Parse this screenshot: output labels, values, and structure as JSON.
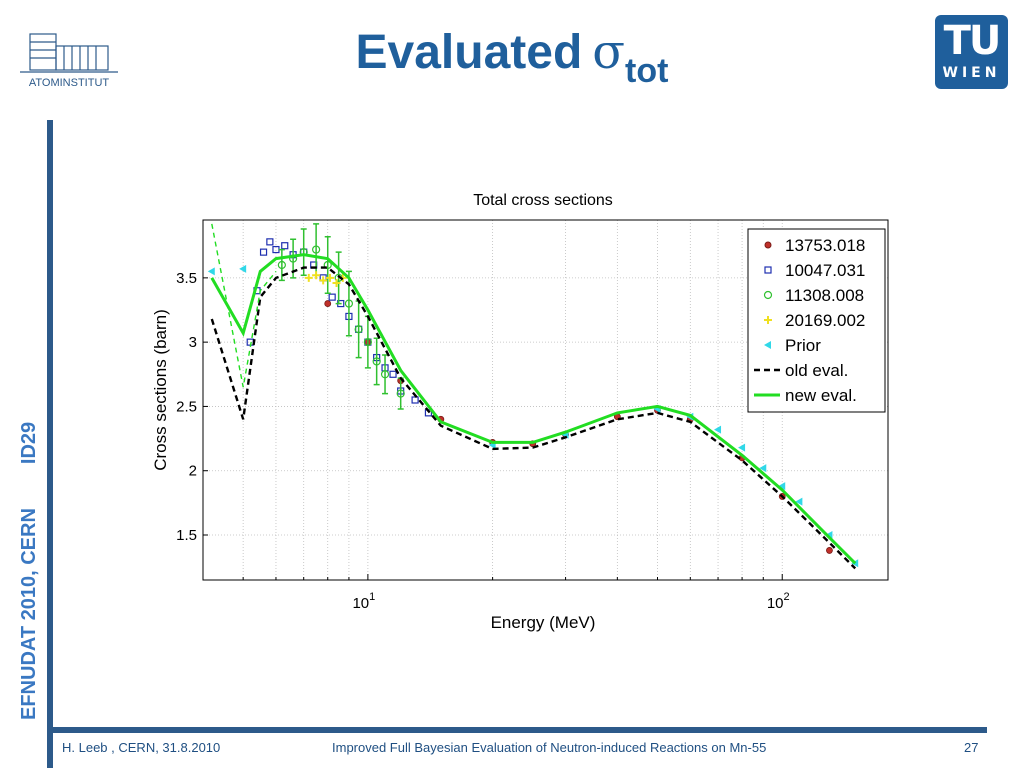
{
  "slide": {
    "title": "Evaluated",
    "title_symbol": "σ",
    "title_subscript": "tot",
    "left_logo_text": "ATOMINSTITUT",
    "right_logo": {
      "line1": "TU",
      "line2": "WIEN"
    },
    "side_text": {
      "part1": "EFNUDAT 2010, CERN",
      "part2": "ID29"
    },
    "footer": {
      "left": "H. Leeb , CERN, 31.8.2010",
      "center": "Improved Full Bayesian Evaluation of Neutron-induced Reactions on Mn-55",
      "page": "27"
    },
    "colors": {
      "brand": "#1f5f9c",
      "side_text": "#3a78c2"
    }
  },
  "chart_data": {
    "type": "line",
    "title": "Total cross sections",
    "xlabel": "Energy (MeV)",
    "ylabel": "Cross sections (barn)",
    "x_scale": "log",
    "xlim": [
      4,
      180
    ],
    "ylim": [
      1.15,
      3.95
    ],
    "x_ticks": [
      {
        "value": 10,
        "base": "10",
        "exp": "1"
      },
      {
        "value": 100,
        "base": "10",
        "exp": "2"
      }
    ],
    "y_ticks": [
      1.5,
      2,
      2.5,
      3,
      3.5
    ],
    "grid": true,
    "legend_position": "top-right",
    "series": [
      {
        "name": "13753.018",
        "kind": "markers",
        "marker": "circle-filled",
        "color": "#c0302a",
        "x": [
          8,
          10,
          12,
          15,
          20,
          25,
          30,
          40,
          50,
          60,
          80,
          100,
          130
        ],
        "y": [
          3.3,
          3.0,
          2.7,
          2.4,
          2.22,
          2.21,
          2.28,
          2.42,
          2.47,
          2.4,
          2.1,
          1.8,
          1.38
        ]
      },
      {
        "name": "10047.031",
        "kind": "markers",
        "marker": "square",
        "color": "#1f2fb0",
        "x": [
          5.2,
          5.4,
          5.6,
          5.8,
          6,
          6.3,
          6.6,
          7,
          7.4,
          7.8,
          8.2,
          8.6,
          9,
          9.5,
          10,
          10.5,
          11,
          11.5,
          12,
          13,
          14
        ],
        "y": [
          3.0,
          3.4,
          3.7,
          3.78,
          3.72,
          3.75,
          3.68,
          3.7,
          3.6,
          3.5,
          3.35,
          3.3,
          3.2,
          3.1,
          3.0,
          2.88,
          2.8,
          2.75,
          2.62,
          2.55,
          2.45
        ]
      },
      {
        "name": "11308.008",
        "kind": "errorbars",
        "marker": "circle-open",
        "color": "#30c030",
        "x": [
          6.2,
          6.6,
          7,
          7.5,
          8,
          8.5,
          9,
          9.5,
          10,
          10.5,
          11,
          12
        ],
        "y": [
          3.6,
          3.65,
          3.7,
          3.72,
          3.6,
          3.5,
          3.3,
          3.1,
          3.0,
          2.85,
          2.75,
          2.6
        ],
        "err": [
          0.12,
          0.15,
          0.18,
          0.2,
          0.22,
          0.2,
          0.25,
          0.22,
          0.2,
          0.18,
          0.15,
          0.12
        ]
      },
      {
        "name": "20169.002",
        "kind": "markers",
        "marker": "plus",
        "color": "#f0e020",
        "x": [
          7.2,
          7.5,
          7.8,
          8.1,
          8.4,
          8.7
        ],
        "y": [
          3.5,
          3.52,
          3.48,
          3.5,
          3.46,
          3.5
        ]
      },
      {
        "name": "Prior",
        "kind": "markers",
        "marker": "triangle-left",
        "color": "#30d8e8",
        "x": [
          4.2,
          5.0,
          20,
          30,
          50,
          60,
          70,
          80,
          90,
          100,
          110,
          130,
          150
        ],
        "y": [
          3.55,
          3.57,
          2.2,
          2.28,
          2.48,
          2.42,
          2.32,
          2.18,
          2.02,
          1.88,
          1.76,
          1.5,
          1.28
        ]
      },
      {
        "name": "old eval.",
        "kind": "line",
        "dash": "6,4",
        "color": "#000000",
        "x": [
          4.2,
          5.0,
          5.5,
          6,
          7,
          8,
          9,
          10,
          12,
          15,
          20,
          25,
          30,
          40,
          50,
          60,
          80,
          100,
          130,
          150
        ],
        "y": [
          3.18,
          2.4,
          3.35,
          3.5,
          3.58,
          3.58,
          3.45,
          3.2,
          2.72,
          2.35,
          2.17,
          2.18,
          2.26,
          2.4,
          2.45,
          2.38,
          2.08,
          1.8,
          1.44,
          1.24
        ]
      },
      {
        "name": "new eval.",
        "kind": "line",
        "dash": "",
        "color": "#22dd22",
        "x": [
          4.2,
          5.0,
          5.5,
          6,
          7,
          8,
          9,
          10,
          12,
          15,
          20,
          25,
          30,
          40,
          50,
          60,
          80,
          100,
          130,
          150
        ],
        "y": [
          3.5,
          3.07,
          3.55,
          3.65,
          3.68,
          3.65,
          3.5,
          3.25,
          2.78,
          2.38,
          2.22,
          2.22,
          2.3,
          2.45,
          2.5,
          2.43,
          2.12,
          1.85,
          1.48,
          1.28
        ]
      },
      {
        "name": "",
        "kind": "line",
        "dash": "5,4",
        "color": "#22dd22",
        "x": [
          4.2,
          5.0,
          5.5,
          6
        ],
        "y": [
          3.92,
          2.65,
          3.4,
          3.55
        ]
      }
    ]
  }
}
